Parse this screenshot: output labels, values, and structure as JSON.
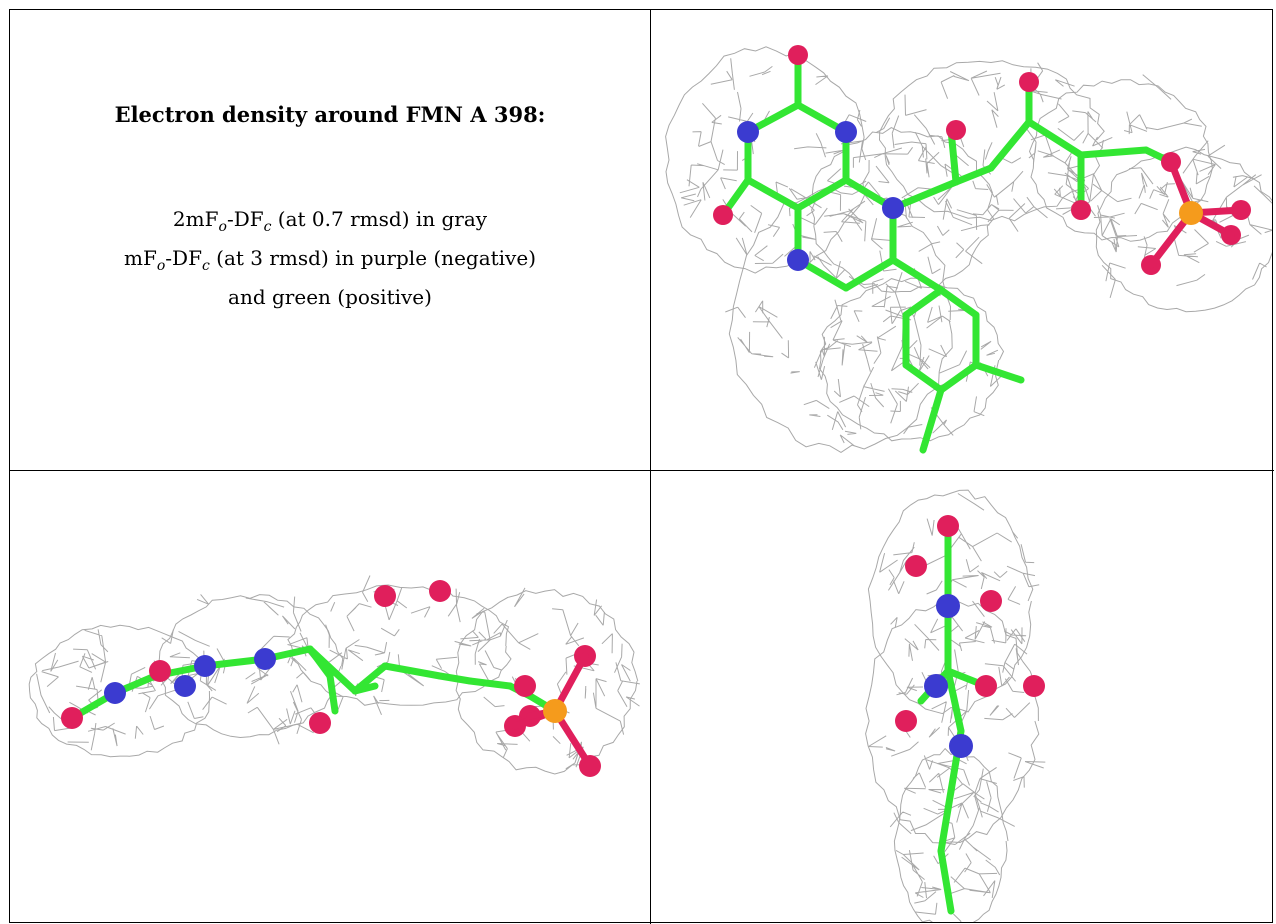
{
  "caption": {
    "title": "Electron density around FMN A 398:",
    "line1_pre": "2mF",
    "line1_sub1": "o",
    "line1_mid": "-DF",
    "line1_sub2": "c",
    "line1_post": " (at 0.7 rmsd) in gray",
    "line2_pre": "mF",
    "line2_sub1": "o",
    "line2_mid": "-DF",
    "line2_sub2": "c",
    "line2_post": " (at 3 rmsd) in purple (negative)",
    "line3": "and green (positive)"
  },
  "colors": {
    "mesh": "#9a9a9a",
    "carbon": "#33e633",
    "nitrogen": "#3b3bd0",
    "oxygen": "#e01f5c",
    "phosphorus": "#f59b1c",
    "border": "#000000"
  },
  "panels": [
    {
      "name": "fmn-top-view"
    },
    {
      "name": "fmn-side-view"
    },
    {
      "name": "fmn-end-view"
    }
  ]
}
